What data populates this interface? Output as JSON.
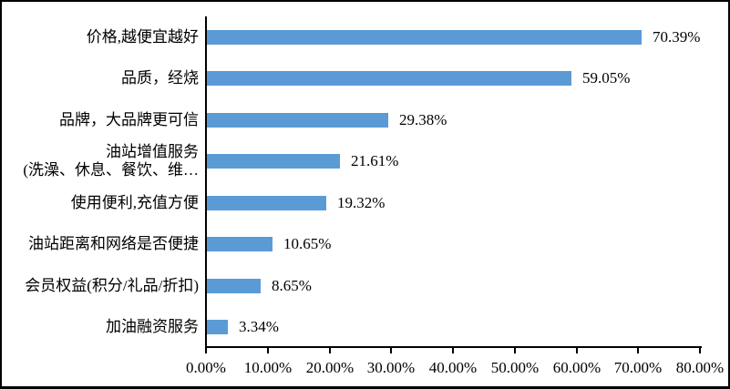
{
  "chart_data": {
    "type": "bar",
    "orientation": "horizontal",
    "title": "",
    "categories": [
      "价格,越便宜越好",
      "品质，经烧",
      "品牌，大品牌更可信",
      "油站增值服务\n(洗澡、休息、餐饮、维…",
      "使用便利,充值方便",
      "油站距离和网络是否便捷",
      "会员权益(积分/礼品/折扣)",
      "加油融资服务"
    ],
    "values": [
      70.39,
      59.05,
      29.38,
      21.61,
      19.32,
      10.65,
      8.65,
      3.34
    ],
    "value_labels": [
      "70.39%",
      "59.05%",
      "29.38%",
      "21.61%",
      "19.32%",
      "10.65%",
      "8.65%",
      "3.34%"
    ],
    "x_tick_labels": [
      "0.00%",
      "10.00%",
      "20.00%",
      "30.00%",
      "40.00%",
      "50.00%",
      "60.00%",
      "70.00%",
      "80.00%"
    ],
    "x_tick_values": [
      0,
      10,
      20,
      30,
      40,
      50,
      60,
      70,
      80
    ],
    "xlim": [
      0,
      80
    ],
    "xlabel": "",
    "ylabel": "",
    "grid": false,
    "legend": false,
    "colors": {
      "bar": "#5B9BD5",
      "axis": "#000000",
      "text": "#000000",
      "background": "#ffffff",
      "border": "#000000"
    }
  }
}
